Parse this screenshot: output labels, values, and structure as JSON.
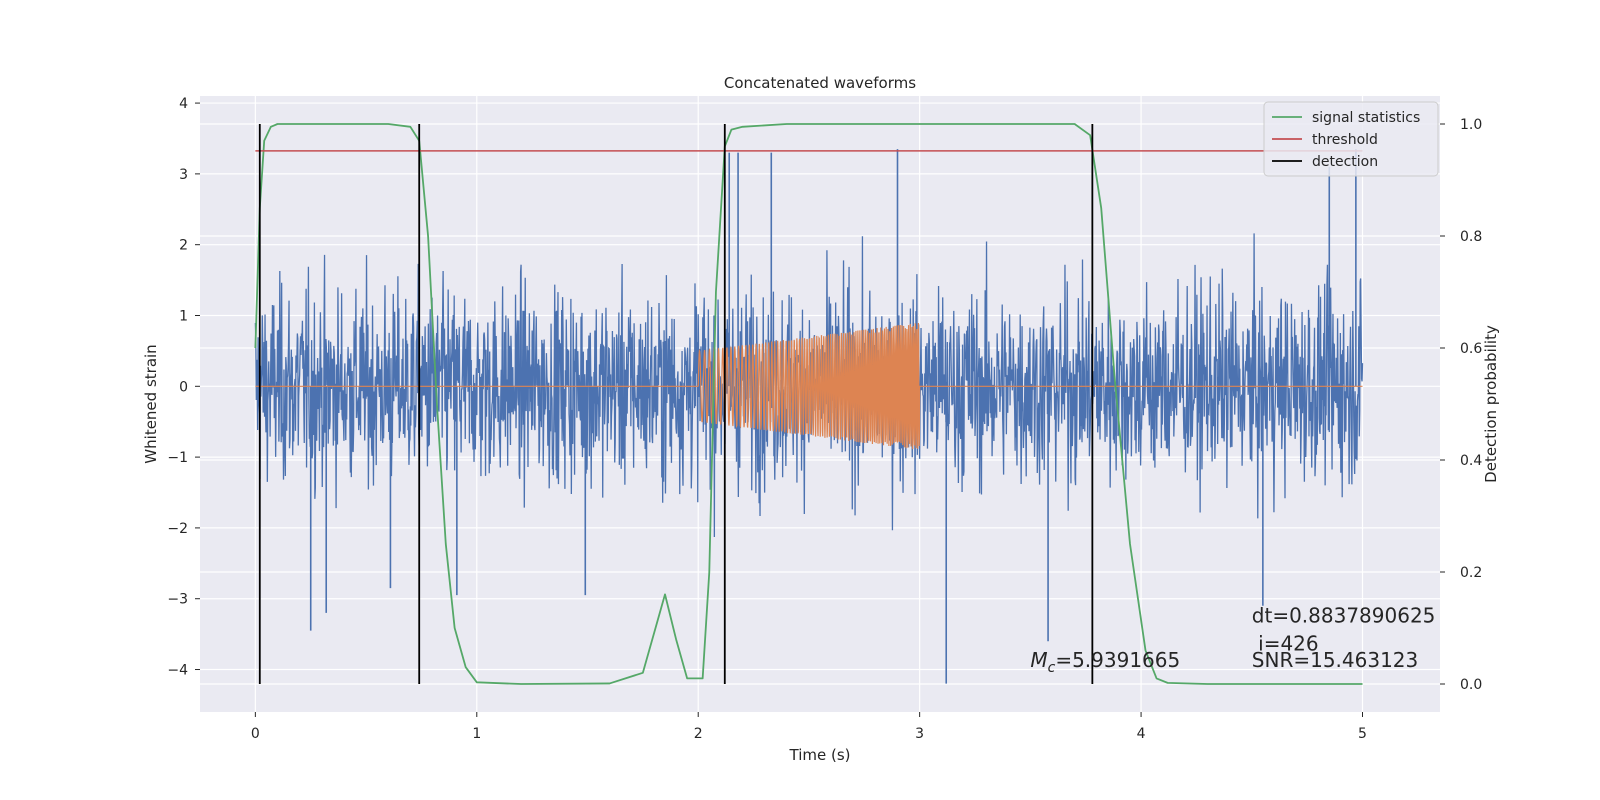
{
  "chart_data": {
    "type": "line",
    "title": "Concatenated waveforms",
    "xlabel": "Time (s)",
    "ylabel": "Whitened strain",
    "y2label": "Detection probability",
    "xlim": [
      -0.25,
      5.35
    ],
    "ylim": [
      -4.6,
      4.1
    ],
    "y2lim": [
      -0.05,
      1.05
    ],
    "x_ticks": [
      0,
      1,
      2,
      3,
      4,
      5
    ],
    "y_ticks": [
      -4,
      -3,
      -2,
      -1,
      0,
      1,
      2,
      3,
      4
    ],
    "y2_ticks": [
      0.0,
      0.2,
      0.4,
      0.6,
      0.8,
      1.0
    ],
    "y2_tick_labels": [
      "0.0",
      "0.2",
      "0.4",
      "0.6",
      "0.8",
      "1.0"
    ],
    "grid": true,
    "legend_position": "top-right",
    "colors": {
      "strain": "#4c72b0",
      "waveform": "#dd8452",
      "signal_statistics": "#55a868",
      "threshold": "#c44e52",
      "detection": "#000000",
      "background": "#eaeaf2",
      "grid": "#ffffff"
    },
    "series": [
      {
        "name": "",
        "axis": "left",
        "description_of": "noisy strain",
        "x_range": [
          0,
          5
        ],
        "envelope": {
          "min": -4.2,
          "max": 3.35
        },
        "peaks": [
          {
            "x": 0.25,
            "y": -3.45
          },
          {
            "x": 0.32,
            "y": -3.2
          },
          {
            "x": 0.61,
            "y": -2.85
          },
          {
            "x": 0.91,
            "y": -2.95
          },
          {
            "x": 1.49,
            "y": -2.95
          },
          {
            "x": 2.14,
            "y": 3.3
          },
          {
            "x": 2.18,
            "y": 3.3
          },
          {
            "x": 2.33,
            "y": 3.3
          },
          {
            "x": 2.9,
            "y": 3.35
          },
          {
            "x": 3.12,
            "y": -4.2
          },
          {
            "x": 3.58,
            "y": -3.6
          },
          {
            "x": 4.55,
            "y": -3.1
          },
          {
            "x": 4.85,
            "y": 3.1
          },
          {
            "x": 4.97,
            "y": 3.35
          }
        ]
      },
      {
        "name": "",
        "axis": "left",
        "description_of": "injected chirp",
        "x": [
          0,
          2,
          3,
          5
        ],
        "chirp_start": 2.0,
        "chirp_end": 3.0,
        "amplitude_start": 0.5,
        "amplitude_end": 0.9
      },
      {
        "name": "signal statistics",
        "axis": "right",
        "x": [
          0.0,
          0.02,
          0.04,
          0.07,
          0.1,
          0.15,
          0.6,
          0.7,
          0.74,
          0.78,
          0.82,
          0.86,
          0.9,
          0.95,
          1.0,
          1.2,
          1.6,
          1.75,
          1.8,
          1.85,
          1.9,
          1.95,
          2.02,
          2.05,
          2.08,
          2.12,
          2.15,
          2.2,
          2.4,
          3.7,
          3.77,
          3.82,
          3.88,
          3.95,
          4.02,
          4.07,
          4.12,
          4.3,
          5.0
        ],
        "y": [
          0.6,
          0.85,
          0.97,
          0.995,
          1.0,
          1.0,
          1.0,
          0.995,
          0.97,
          0.8,
          0.5,
          0.25,
          0.1,
          0.03,
          0.003,
          0.0,
          0.001,
          0.02,
          0.09,
          0.16,
          0.08,
          0.01,
          0.01,
          0.2,
          0.7,
          0.96,
          0.99,
          0.995,
          1.0,
          1.0,
          0.98,
          0.85,
          0.55,
          0.25,
          0.06,
          0.01,
          0.002,
          0.0,
          0.0
        ]
      },
      {
        "name": "threshold",
        "axis": "right",
        "x": [
          0,
          5
        ],
        "y": [
          0.952,
          0.952
        ]
      },
      {
        "name": "detection",
        "axis": "right",
        "vlines": [
          0.02,
          0.74,
          2.12,
          3.78
        ],
        "ymin": 0.0,
        "ymax": 1.0
      }
    ],
    "annotations": [
      {
        "text": "dt=0.8837890625",
        "x": 4.5,
        "y2": 0.11
      },
      {
        "text": " i=426",
        "x": 4.5,
        "y2": 0.06
      },
      {
        "text": "=5.9391665",
        "x": 3.5,
        "y2": 0.03,
        "prefix_symbol": "M",
        "prefix_subscript": "c"
      },
      {
        "text": "SNR=15.463123",
        "x": 4.5,
        "y2": 0.03
      }
    ]
  }
}
